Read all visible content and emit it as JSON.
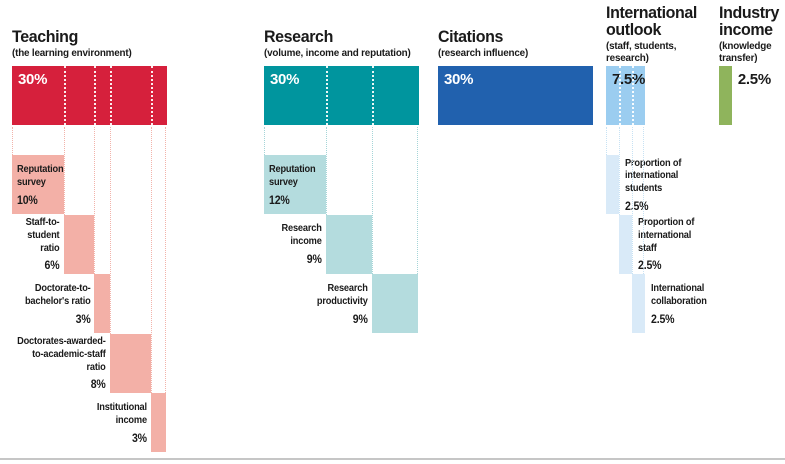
{
  "chart_data": {
    "type": "bar",
    "description_note": "Ranking methodology weighting breakdown chart",
    "categories": [
      "Teaching",
      "Research",
      "Citations",
      "International outlook",
      "Industry income"
    ],
    "values": [
      30,
      30,
      30,
      7.5,
      2.5
    ],
    "unit": "%",
    "sections": [
      {
        "id": "teaching",
        "name": "Teaching",
        "subtitle": "(the learning environment)",
        "weight": 30,
        "weight_label": "30%",
        "color": "#d6203c",
        "sub_color": "#f3b0a7",
        "guide_color": "#f2b3aa",
        "value_color": "#ffffff",
        "subs": [
          {
            "label": "Reputation\nsurvey",
            "weight": 10,
            "weight_label": "10%",
            "label_side": "inside"
          },
          {
            "label": "Staff-to-\nstudent\nratio",
            "weight": 6,
            "weight_label": "6%",
            "label_side": "left"
          },
          {
            "label": "Doctorate-to-\nbachelor's ratio",
            "weight": 3,
            "weight_label": "3%",
            "label_side": "left"
          },
          {
            "label": "Doctorates-awarded-\nto-academic-staff\nratio",
            "weight": 8,
            "weight_label": "8%",
            "label_side": "left"
          },
          {
            "label": "Institutional\nincome",
            "weight": 3,
            "weight_label": "3%",
            "label_side": "left"
          }
        ]
      },
      {
        "id": "research",
        "name": "Research",
        "subtitle": "(volume, income and reputation)",
        "weight": 30,
        "weight_label": "30%",
        "color": "#00959e",
        "sub_color": "#b4dcde",
        "guide_color": "#a5d5d8",
        "value_color": "#ffffff",
        "subs": [
          {
            "label": "Reputation\nsurvey",
            "weight": 12,
            "weight_label": "12%",
            "label_side": "inside"
          },
          {
            "label": "Research\nincome",
            "weight": 9,
            "weight_label": "9%",
            "label_side": "left"
          },
          {
            "label": "Research\nproductivity",
            "weight": 9,
            "weight_label": "9%",
            "label_side": "left"
          }
        ]
      },
      {
        "id": "citations",
        "name": "Citations",
        "subtitle": "(research influence)",
        "weight": 30,
        "weight_label": "30%",
        "color": "#2161ae",
        "value_color": "#ffffff",
        "subs": []
      },
      {
        "id": "international-outlook",
        "name": "International\noutlook",
        "subtitle": "(staff, students,\nresearch)",
        "weight": 7.5,
        "weight_label": "7.5%",
        "color": "#9bcdf0",
        "sub_color": "#d9eaf8",
        "guide_color": "#c7e2f4",
        "value_color": "#1a1a1a",
        "subs": [
          {
            "label": "Proportion of\ninternational\nstudents",
            "weight": 2.5,
            "weight_label": "2.5%",
            "label_side": "right"
          },
          {
            "label": "Proportion of\ninternational\nstaff",
            "weight": 2.5,
            "weight_label": "2.5%",
            "label_side": "right"
          },
          {
            "label": "International\ncollaboration",
            "weight": 2.5,
            "weight_label": "2.5%",
            "label_side": "right"
          }
        ]
      },
      {
        "id": "industry-income",
        "name": "Industry\nincome",
        "subtitle": "(knowledge\ntransfer)",
        "weight": 2.5,
        "weight_label": "2.5%",
        "color": "#8fb45c",
        "value_color": "#1a1a1a",
        "value_outside": true,
        "subs": []
      }
    ]
  }
}
